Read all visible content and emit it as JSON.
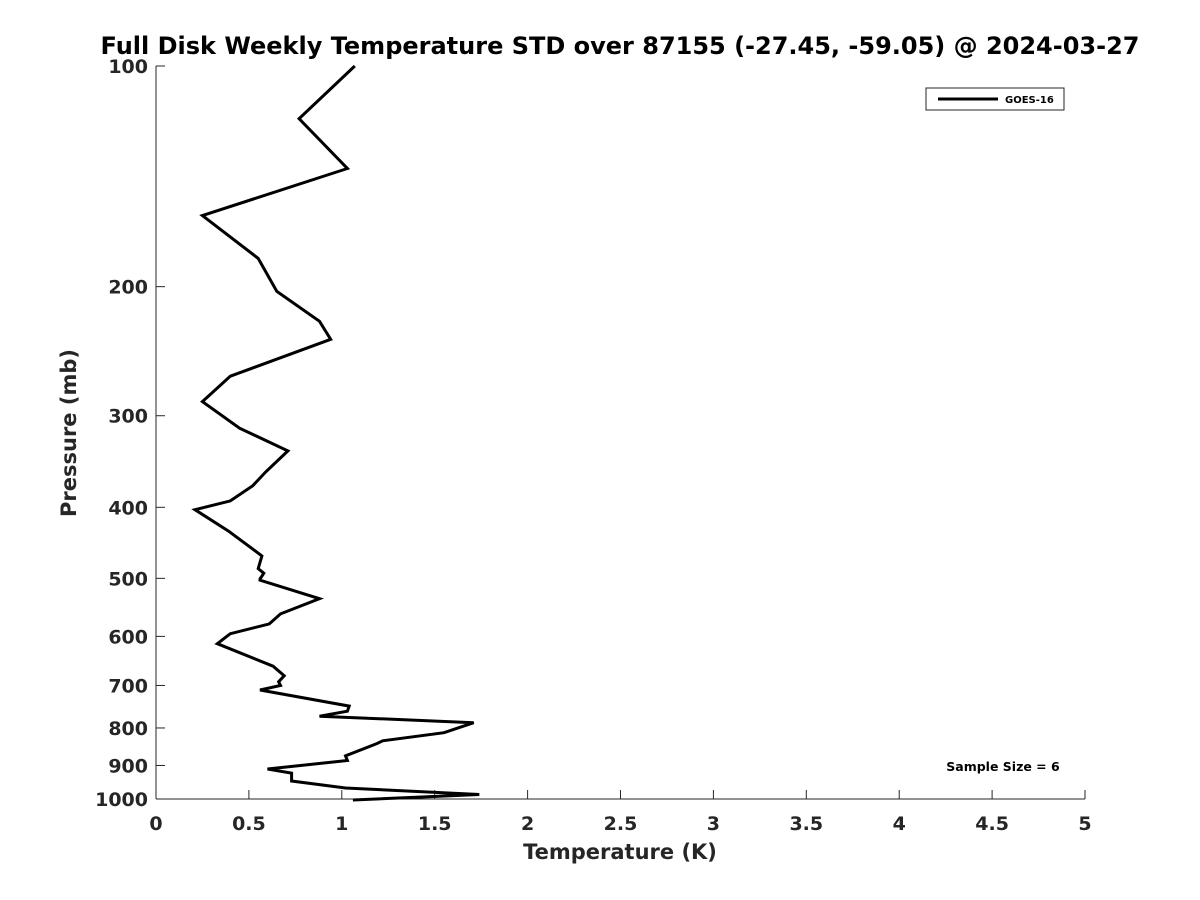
{
  "chart_data": {
    "type": "line",
    "title": "Full Disk Weekly Temperature STD over 87155 (-27.45, -59.05) @ 2024-03-27",
    "xlabel": "Temperature (K)",
    "ylabel": "Pressure (mb)",
    "xlim": [
      0,
      5
    ],
    "ylim": [
      100,
      1000
    ],
    "y_scale": "log",
    "y_reversed": true,
    "grid": false,
    "legend_position": "top-right",
    "x_ticks": [
      "0",
      "0.5",
      "1",
      "1.5",
      "2",
      "2.5",
      "3",
      "3.5",
      "4",
      "4.5",
      "5"
    ],
    "y_ticks": [
      "100",
      "200",
      "300",
      "400",
      "500",
      "600",
      "700",
      "800",
      "900",
      "1000"
    ],
    "annotation": "Sample Size = 6",
    "series": [
      {
        "name": "GOES-16",
        "color": "#000000",
        "x": [
          1.07,
          0.77,
          1.03,
          0.25,
          0.55,
          0.65,
          0.88,
          0.94,
          0.4,
          0.25,
          0.45,
          0.71,
          0.59,
          0.52,
          0.4,
          0.21,
          0.39,
          0.57,
          0.55,
          0.58,
          0.56,
          0.56,
          0.88,
          0.67,
          0.61,
          0.4,
          0.33,
          0.63,
          0.69,
          0.66,
          0.67,
          0.56,
          1.04,
          1.03,
          0.88,
          1.71,
          1.55,
          1.22,
          1.19,
          1.02,
          1.03,
          0.6,
          0.73,
          0.73,
          1.02,
          1.74,
          1.06
        ],
        "y": [
          100,
          118,
          138,
          160,
          183,
          203,
          223,
          236,
          265,
          287,
          312,
          335,
          358,
          374,
          392,
          403,
          431,
          466,
          485,
          492,
          501,
          503,
          533,
          559,
          577,
          595,
          614,
          659,
          679,
          692,
          700,
          710,
          747,
          759,
          771,
          787,
          812,
          833,
          840,
          873,
          886,
          910,
          922,
          945,
          966,
          986,
          1003
        ]
      }
    ]
  }
}
